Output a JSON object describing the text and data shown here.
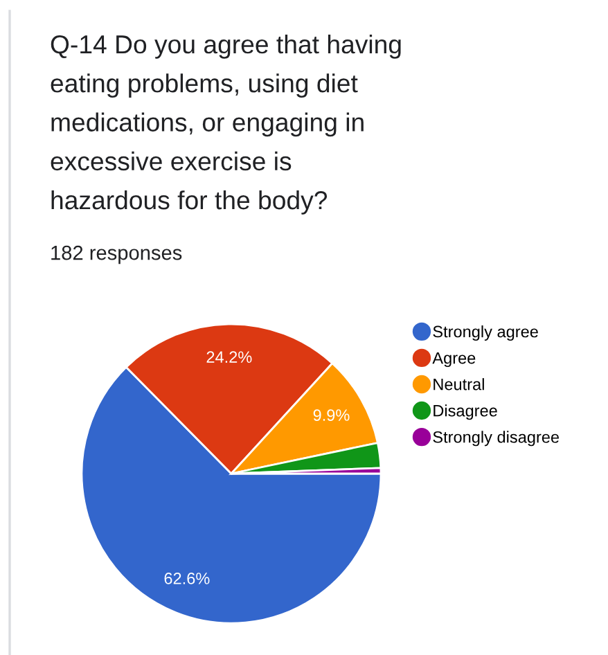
{
  "chart_data": {
    "type": "pie",
    "title": "Q-14 Do you agree that having eating problems, using diet medications, or engaging in excessive exercise is hazardous for the body?",
    "subtitle": "182 responses",
    "categories": [
      "Strongly agree",
      "Agree",
      "Neutral",
      "Disagree",
      "Strongly disagree"
    ],
    "values": [
      62.6,
      24.2,
      9.9,
      2.7,
      0.6
    ],
    "colors": [
      "#3366cc",
      "#dc3912",
      "#ff9900",
      "#109618",
      "#990099"
    ],
    "value_labels": [
      "62.6%",
      "24.2%",
      "9.9%",
      null,
      null
    ],
    "legend": "right"
  }
}
